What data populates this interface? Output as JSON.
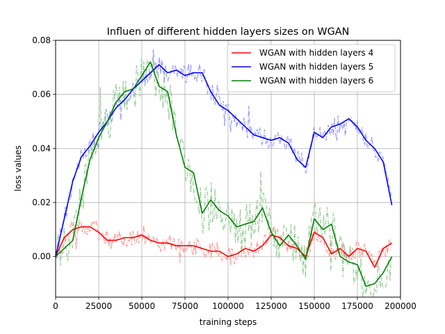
{
  "chart_data": {
    "type": "line",
    "title": "Influen of different hidden layers sizes on WGAN",
    "xlabel": "training steps",
    "ylabel": "loss values",
    "xlim": [
      0,
      200000
    ],
    "ylim": [
      -0.015,
      0.08
    ],
    "xticks": [
      0,
      25000,
      50000,
      75000,
      100000,
      125000,
      150000,
      175000,
      200000
    ],
    "yticks": [
      0.0,
      0.02,
      0.04,
      0.06,
      0.08
    ],
    "ytick_labels": [
      "0.00",
      "0.02",
      "0.04",
      "0.06",
      "0.08"
    ],
    "grid": true,
    "legend_position": "upper right",
    "series": [
      {
        "name": "WGAN with hidden layers 4",
        "color": "#ff0000",
        "raw_color": "#ff9999",
        "x": [
          0,
          5000,
          10000,
          15000,
          20000,
          25000,
          30000,
          35000,
          40000,
          45000,
          50000,
          55000,
          60000,
          65000,
          70000,
          75000,
          80000,
          85000,
          90000,
          95000,
          100000,
          105000,
          110000,
          115000,
          120000,
          125000,
          130000,
          135000,
          140000,
          145000,
          150000,
          155000,
          160000,
          165000,
          170000,
          175000,
          180000,
          185000,
          190000,
          195000
        ],
        "y": [
          0.0,
          0.007,
          0.01,
          0.011,
          0.011,
          0.009,
          0.006,
          0.006,
          0.007,
          0.007,
          0.008,
          0.006,
          0.005,
          0.005,
          0.004,
          0.004,
          0.004,
          0.003,
          0.002,
          0.002,
          0.0,
          0.001,
          0.003,
          0.002,
          0.004,
          0.008,
          0.007,
          0.004,
          0.003,
          0.0,
          0.009,
          0.007,
          0.001,
          0.003,
          0.0,
          0.003,
          0.002,
          -0.004,
          0.003,
          0.005
        ]
      },
      {
        "name": "WGAN with hidden layers 5",
        "color": "#0000ff",
        "raw_color": "#9999ff",
        "x": [
          0,
          5000,
          10000,
          15000,
          20000,
          25000,
          30000,
          35000,
          40000,
          45000,
          50000,
          55000,
          60000,
          65000,
          70000,
          75000,
          80000,
          85000,
          90000,
          95000,
          100000,
          105000,
          110000,
          115000,
          120000,
          125000,
          130000,
          135000,
          140000,
          145000,
          150000,
          155000,
          160000,
          165000,
          170000,
          175000,
          180000,
          185000,
          190000,
          195000
        ],
        "y": [
          0.0,
          0.014,
          0.028,
          0.037,
          0.041,
          0.046,
          0.05,
          0.055,
          0.058,
          0.062,
          0.065,
          0.068,
          0.071,
          0.068,
          0.069,
          0.067,
          0.068,
          0.068,
          0.061,
          0.056,
          0.054,
          0.051,
          0.048,
          0.045,
          0.044,
          0.043,
          0.044,
          0.042,
          0.036,
          0.033,
          0.046,
          0.044,
          0.048,
          0.049,
          0.051,
          0.048,
          0.043,
          0.04,
          0.035,
          0.019
        ]
      },
      {
        "name": "WGAN with hidden layers 6",
        "color": "#008000",
        "raw_color": "#99cc99",
        "x": [
          0,
          5000,
          10000,
          15000,
          20000,
          25000,
          30000,
          35000,
          40000,
          45000,
          50000,
          55000,
          60000,
          65000,
          70000,
          75000,
          80000,
          85000,
          90000,
          95000,
          100000,
          105000,
          110000,
          115000,
          120000,
          125000,
          130000,
          135000,
          140000,
          145000,
          150000,
          155000,
          160000,
          165000,
          170000,
          175000,
          180000,
          185000,
          190000,
          195000
        ],
        "y": [
          0.0,
          0.003,
          0.006,
          0.022,
          0.036,
          0.044,
          0.05,
          0.057,
          0.061,
          0.062,
          0.067,
          0.072,
          0.063,
          0.061,
          0.045,
          0.033,
          0.031,
          0.016,
          0.021,
          0.017,
          0.015,
          0.011,
          0.012,
          0.013,
          0.018,
          0.009,
          0.004,
          0.008,
          0.004,
          -0.001,
          0.014,
          0.01,
          0.012,
          0.0,
          -0.002,
          -0.003,
          -0.011,
          -0.01,
          -0.006,
          0.0
        ]
      }
    ]
  }
}
